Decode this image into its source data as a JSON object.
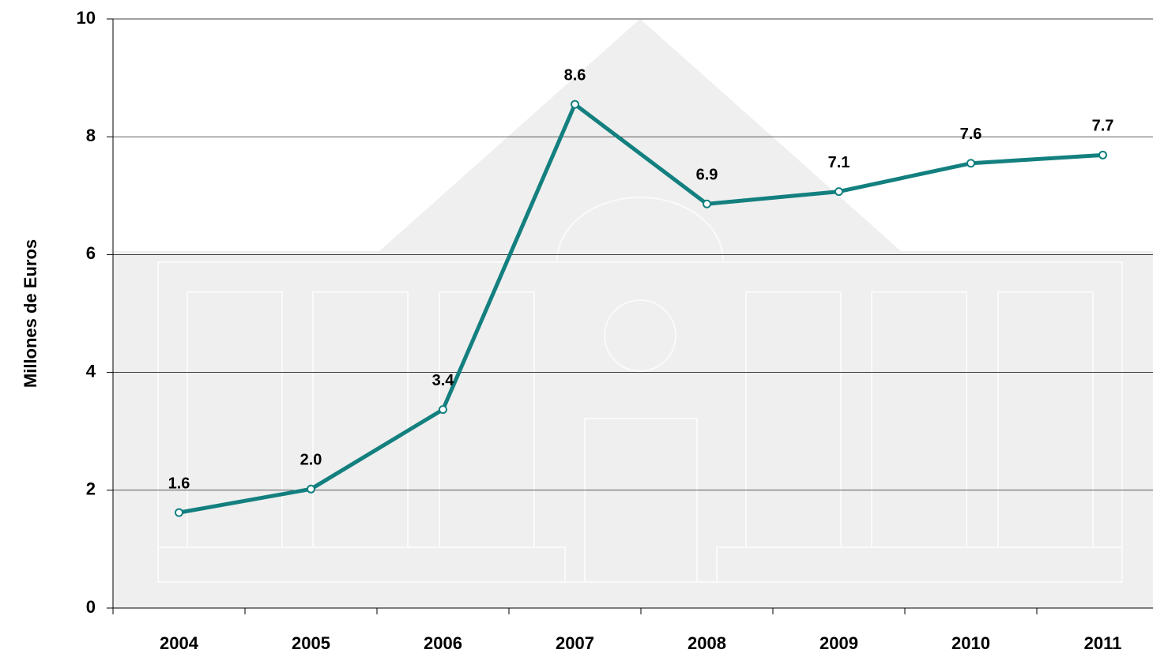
{
  "chart_data": {
    "type": "line",
    "y_label": "Millones de Euros",
    "categories": [
      "2004",
      "2005",
      "2006",
      "2007",
      "2008",
      "2009",
      "2010",
      "2011"
    ],
    "series": [
      {
        "name": "Millones de Euros",
        "color": "#13807f",
        "values": [
          1.62,
          2.02,
          3.37,
          8.55,
          6.86,
          7.07,
          7.55,
          7.69
        ],
        "value_labels": [
          "1.6",
          "2.0",
          "3.4",
          "8.6",
          "6.9",
          "7.1",
          "7.6",
          "7.7"
        ]
      }
    ],
    "ylim": [
      0,
      10
    ],
    "yticks": [
      0,
      2,
      4,
      6,
      8,
      10
    ],
    "grid": true
  }
}
